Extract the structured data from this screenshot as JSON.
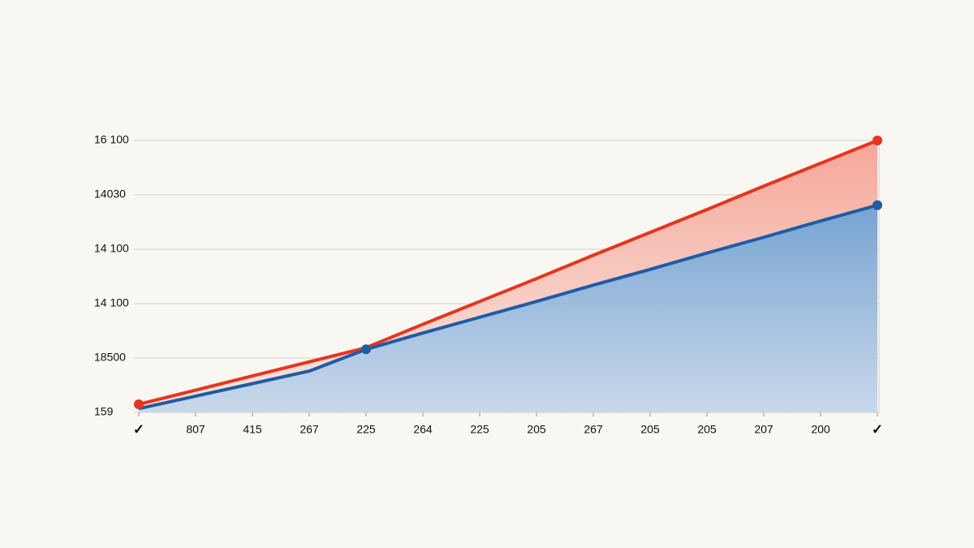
{
  "chart_data": {
    "type": "area",
    "categories": [
      "✓",
      "807",
      "415",
      "267",
      "225",
      "264",
      "225",
      "205",
      "267",
      "205",
      "205",
      "207",
      "200",
      "✓"
    ],
    "series": [
      {
        "color": "#e8341c",
        "fill": "#f4a293",
        "values": [
          0.15,
          0.41,
          0.67,
          0.93,
          1.19,
          1.62,
          2.04,
          2.46,
          2.89,
          3.31,
          3.73,
          4.16,
          4.58,
          5.0
        ],
        "markers": [
          0,
          13
        ]
      },
      {
        "color": "#1f5ba6",
        "fill": "#6f9fd0",
        "values": [
          0.07,
          0.3,
          0.53,
          0.76,
          1.16,
          1.46,
          1.75,
          2.04,
          2.34,
          2.63,
          2.93,
          3.22,
          3.52,
          3.81
        ],
        "markers": [
          4,
          13
        ]
      }
    ],
    "ylim": [
      0,
      5
    ],
    "yticks": [
      {
        "value": 0,
        "label": "159"
      },
      {
        "value": 1,
        "label": "18500"
      },
      {
        "value": 2,
        "label": "14 100"
      },
      {
        "value": 3,
        "label": "14 100"
      },
      {
        "value": 4,
        "label": "14030"
      },
      {
        "value": 5,
        "label": "16 100"
      }
    ],
    "grid": true
  }
}
